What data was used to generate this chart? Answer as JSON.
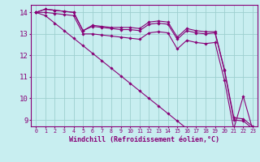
{
  "xlabel": "Windchill (Refroidissement éolien,°C)",
  "bg_color": "#c8eef0",
  "grid_color": "#9ecfcf",
  "line_color": "#880077",
  "xlim": [
    -0.5,
    23.5
  ],
  "ylim": [
    8.7,
    14.35
  ],
  "yticks": [
    9,
    10,
    11,
    12,
    13,
    14
  ],
  "xticks": [
    0,
    1,
    2,
    3,
    4,
    5,
    6,
    7,
    8,
    9,
    10,
    11,
    12,
    13,
    14,
    15,
    16,
    17,
    18,
    19,
    20,
    21,
    22,
    23
  ],
  "lines": [
    [
      14.0,
      14.15,
      14.1,
      14.05,
      14.0,
      13.15,
      13.4,
      13.35,
      13.3,
      13.3,
      13.3,
      13.25,
      13.55,
      13.6,
      13.55,
      12.85,
      13.25,
      13.15,
      13.1,
      13.1,
      11.35,
      9.1,
      9.05,
      8.7
    ],
    [
      14.0,
      14.15,
      14.1,
      14.05,
      14.0,
      13.15,
      13.35,
      13.3,
      13.25,
      13.2,
      13.2,
      13.15,
      13.45,
      13.5,
      13.45,
      12.75,
      13.15,
      13.05,
      13.0,
      13.05,
      11.3,
      9.0,
      8.95,
      8.6
    ],
    [
      14.0,
      14.0,
      13.95,
      13.9,
      13.85,
      13.0,
      13.0,
      12.95,
      12.9,
      12.85,
      12.8,
      12.75,
      13.05,
      13.1,
      13.05,
      12.3,
      12.7,
      12.6,
      12.55,
      12.6,
      10.85,
      8.55,
      8.5,
      8.2
    ],
    [
      14.0,
      13.85,
      13.5,
      13.15,
      12.8,
      12.45,
      12.1,
      11.75,
      11.4,
      11.05,
      10.7,
      10.35,
      10.0,
      9.65,
      9.3,
      8.95,
      8.6,
      8.6,
      8.6,
      8.6,
      8.6,
      8.6,
      10.1,
      8.55
    ]
  ]
}
